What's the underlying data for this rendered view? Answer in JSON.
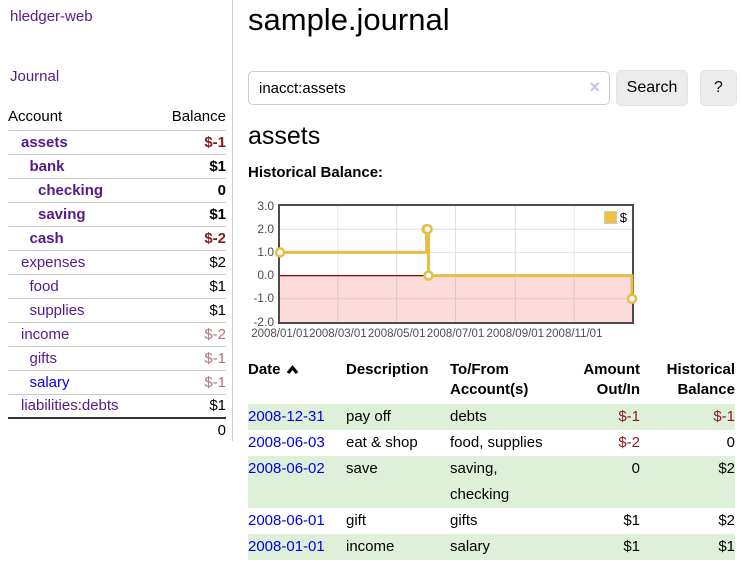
{
  "brand": "hledger-web",
  "sidebar": {
    "journal_link": "Journal",
    "accounts_header": {
      "account": "Account",
      "balance": "Balance"
    },
    "accounts": [
      {
        "name": "assets",
        "level": 1,
        "bold": true,
        "balance": "$-1",
        "neg": "strong"
      },
      {
        "name": "bank",
        "level": 2,
        "bold": true,
        "balance": "$1"
      },
      {
        "name": "checking",
        "level": 3,
        "bold": true,
        "balance": "0"
      },
      {
        "name": "saving",
        "level": 3,
        "bold": true,
        "balance": "$1"
      },
      {
        "name": "cash",
        "level": 2,
        "bold": true,
        "balance": "$-2",
        "neg": "strong"
      },
      {
        "name": "expenses",
        "level": 1,
        "bold": false,
        "balance": "$2"
      },
      {
        "name": "food",
        "level": 2,
        "bold": false,
        "balance": "$1"
      },
      {
        "name": "supplies",
        "level": 2,
        "bold": false,
        "balance": "$1"
      },
      {
        "name": "income",
        "level": 1,
        "bold": false,
        "balance": "$-2",
        "neg": "soft"
      },
      {
        "name": "gifts",
        "level": 2,
        "bold": false,
        "balance": "$-1",
        "neg": "soft"
      },
      {
        "name": "salary",
        "level": 2,
        "bold": false,
        "balance": "$-1",
        "neg": "soft",
        "link_color": "blue"
      },
      {
        "name": "liabilities:debts",
        "level": 1,
        "bold": false,
        "balance": "$1"
      }
    ],
    "total": "0"
  },
  "header": {
    "title": "sample.journal"
  },
  "search": {
    "value": "inacct:assets",
    "clear_icon": "×",
    "button": "Search",
    "help_button": "?"
  },
  "account_page": {
    "heading": "assets",
    "chart_label": "Historical Balance:"
  },
  "chart_data": {
    "type": "line",
    "title": "Historical Balance",
    "step": true,
    "series": [
      {
        "name": "$",
        "color": "#e8bd45",
        "points": [
          [
            "2008-01-01",
            1
          ],
          [
            "2008-06-01",
            2
          ],
          [
            "2008-06-02",
            2
          ],
          [
            "2008-06-03",
            0
          ],
          [
            "2008-12-31",
            -1
          ]
        ]
      }
    ],
    "x_range": [
      "2008-01-01",
      "2008-12-31"
    ],
    "ylim": [
      -2,
      3
    ],
    "y_ticks": [
      "3.0",
      "2.0",
      "1.0",
      "0.0",
      "-1.0",
      "-2.0"
    ],
    "x_ticks": [
      "2008/01/01",
      "2008/03/01",
      "2008/05/01",
      "2008/07/01",
      "2008/09/01",
      "2008/11/01"
    ],
    "legend": {
      "label": "$",
      "position": "top-right"
    },
    "grid": true,
    "negative_region_color": "rgba(242,110,110,0.25)",
    "zero_line_color": "#8b0000"
  },
  "register": {
    "columns": [
      {
        "label": "Date",
        "sort": "asc"
      },
      {
        "label": "Description"
      },
      {
        "label": "To/From\nAccount(s)"
      },
      {
        "label": "Amount\nOut/In"
      },
      {
        "label": "Historical\nBalance"
      }
    ],
    "rows": [
      {
        "date": "2008-12-31",
        "description": "pay off",
        "accounts": "debts",
        "amount": "$-1",
        "amount_neg": true,
        "balance": "$-1",
        "balance_neg": true,
        "stripe": true
      },
      {
        "date": "2008-06-03",
        "description": "eat & shop",
        "accounts": "food, supplies",
        "amount": "$-2",
        "amount_neg": true,
        "balance": "0",
        "balance_neg": false,
        "stripe": false
      },
      {
        "date": "2008-06-02",
        "description": "save",
        "accounts": "saving,\nchecking",
        "amount": "0",
        "amount_neg": false,
        "balance": "$2",
        "balance_neg": false,
        "stripe": true
      },
      {
        "date": "2008-06-01",
        "description": "gift",
        "accounts": "gifts",
        "amount": "$1",
        "amount_neg": false,
        "balance": "$2",
        "balance_neg": false,
        "stripe": false
      },
      {
        "date": "2008-01-01",
        "description": "income",
        "accounts": "salary",
        "amount": "$1",
        "amount_neg": false,
        "balance": "$1",
        "balance_neg": false,
        "stripe": true
      }
    ]
  }
}
